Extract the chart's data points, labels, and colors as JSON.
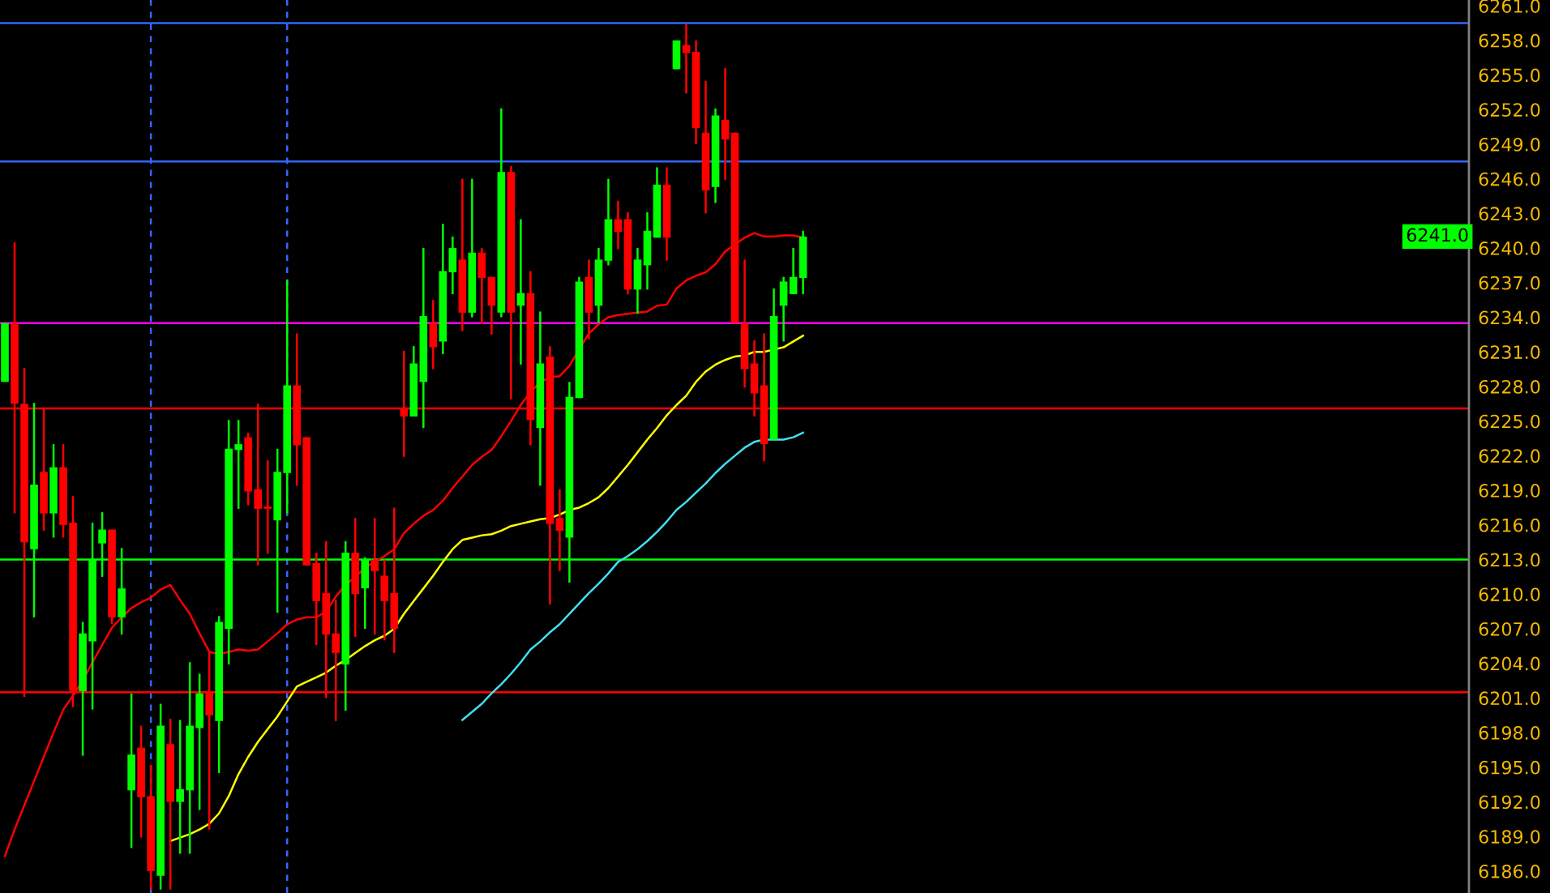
{
  "chart_data": {
    "type": "candlestick",
    "categories": [
      null,
      null,
      null,
      null,
      null,
      null,
      null,
      null,
      null,
      null,
      null,
      null,
      null,
      null,
      null,
      null,
      null,
      null,
      null,
      null,
      null,
      null,
      null,
      null,
      null,
      null,
      null,
      null,
      null,
      null,
      null,
      null,
      null,
      null,
      null,
      null,
      null,
      null,
      null,
      null,
      null,
      null,
      null,
      null,
      null,
      null,
      null,
      null,
      null,
      null,
      null,
      null,
      null,
      null,
      null,
      null,
      null,
      null,
      null,
      null,
      null,
      null,
      null,
      null,
      null,
      null,
      null,
      null,
      null,
      null,
      null,
      null,
      null,
      null,
      null,
      null,
      null,
      null,
      null,
      null,
      null,
      null,
      null
    ],
    "ohlc": [
      [
        6228.4,
        6233.5,
        6228.4,
        6233.5
      ],
      [
        6233.5,
        6240.5,
        6217.0,
        6226.5
      ],
      [
        6226.5,
        6229.6,
        6201.1,
        6214.5
      ],
      [
        6213.9,
        6226.6,
        6208.0,
        6219.5
      ],
      [
        6220.6,
        6226.1,
        6215.5,
        6217.0
      ],
      [
        6217.0,
        6223.0,
        6214.9,
        6221.0
      ],
      [
        6221.0,
        6223.0,
        6214.9,
        6216.0
      ],
      [
        6216.2,
        6218.5,
        6200.2,
        6201.6
      ],
      [
        6201.6,
        6207.6,
        6196.0,
        6206.6
      ],
      [
        6205.9,
        6216.2,
        6200.0,
        6213.0
      ],
      [
        6214.4,
        6217.1,
        6211.5,
        6215.6
      ],
      [
        6215.6,
        6215.6,
        6207.4,
        6208.0
      ],
      [
        6208.0,
        6214.0,
        6206.5,
        6210.5
      ],
      [
        6193.0,
        6201.4,
        6188.0,
        6196.1
      ],
      [
        6196.7,
        6198.6,
        6188.9,
        6192.4
      ],
      [
        6192.5,
        6195.2,
        6184.4,
        6186.0
      ],
      [
        6185.6,
        6200.5,
        6184.4,
        6198.6
      ],
      [
        6197.0,
        6199.2,
        6184.4,
        6192.0
      ],
      [
        6192.0,
        6199.1,
        6187.5,
        6193.1
      ],
      [
        6193.0,
        6204.1,
        6187.5,
        6198.6
      ],
      [
        6198.4,
        6203.1,
        6191.3,
        6201.4
      ],
      [
        6201.6,
        6205.1,
        6189.6,
        6199.5
      ],
      [
        6199.0,
        6208.1,
        6194.5,
        6207.6
      ],
      [
        6207.0,
        6225.1,
        6203.9,
        6222.6
      ],
      [
        6222.5,
        6225.1,
        6217.4,
        6223.0
      ],
      [
        6223.6,
        6224.0,
        6217.7,
        6218.9
      ],
      [
        6219.1,
        6226.5,
        6212.5,
        6217.4
      ],
      [
        6217.5,
        6221.6,
        6213.5,
        6217.5
      ],
      [
        6216.4,
        6222.6,
        6208.4,
        6220.6
      ],
      [
        6220.5,
        6237.2,
        6217.0,
        6228.1
      ],
      [
        6228.1,
        6232.6,
        6219.4,
        6222.9
      ],
      [
        6223.6,
        6223.6,
        6212.5,
        6212.5
      ],
      [
        6212.7,
        6213.6,
        6205.6,
        6209.4
      ],
      [
        6210.1,
        6214.6,
        6201.0,
        6206.5
      ],
      [
        6206.6,
        6209.5,
        6199.0,
        6204.9
      ],
      [
        6203.9,
        6214.6,
        6199.9,
        6213.6
      ],
      [
        6213.6,
        6216.6,
        6206.3,
        6210.0
      ],
      [
        6210.5,
        6213.2,
        6207.0,
        6213.0
      ],
      [
        6213.0,
        6216.6,
        6206.5,
        6212.0
      ],
      [
        6211.6,
        6213.0,
        6206.0,
        6209.4
      ],
      [
        6210.1,
        6217.5,
        6204.9,
        6207.0
      ],
      [
        6226.1,
        6231.1,
        6221.9,
        6225.4
      ],
      [
        6225.4,
        6231.5,
        6225.4,
        6230.0
      ],
      [
        6228.4,
        6240.0,
        6224.4,
        6234.1
      ],
      [
        6233.5,
        6235.5,
        6229.5,
        6231.4
      ],
      [
        6231.9,
        6242.1,
        6230.8,
        6238.0
      ],
      [
        6237.9,
        6241.0,
        6236.0,
        6240.0
      ],
      [
        6239.0,
        6246.0,
        6232.8,
        6234.4
      ],
      [
        6234.4,
        6246.0,
        6234.0,
        6239.6
      ],
      [
        6239.6,
        6240.0,
        6233.4,
        6237.4
      ],
      [
        6237.5,
        6237.5,
        6232.5,
        6235.0
      ],
      [
        6234.4,
        6252.1,
        6234.0,
        6246.6
      ],
      [
        6246.6,
        6247.1,
        6226.9,
        6234.4
      ],
      [
        6235.0,
        6242.5,
        6229.9,
        6236.1
      ],
      [
        6236.1,
        6238.0,
        6222.9,
        6225.1
      ],
      [
        6224.4,
        6234.5,
        6219.4,
        6230.0
      ],
      [
        6230.6,
        6231.5,
        6209.1,
        6216.1
      ],
      [
        6216.6,
        6219.1,
        6212.0,
        6215.5
      ],
      [
        6214.9,
        6228.4,
        6211.0,
        6227.1
      ],
      [
        6227.0,
        6237.5,
        6227.0,
        6237.1
      ],
      [
        6237.5,
        6239.0,
        6232.1,
        6234.4
      ],
      [
        6235.0,
        6240.0,
        6233.5,
        6239.0
      ],
      [
        6238.9,
        6246.0,
        6238.5,
        6242.5
      ],
      [
        6242.5,
        6244.1,
        6239.9,
        6241.4
      ],
      [
        6242.5,
        6243.1,
        6236.0,
        6236.4
      ],
      [
        6236.4,
        6240.0,
        6234.3,
        6239.0
      ],
      [
        6238.5,
        6243.1,
        6236.4,
        6241.5
      ],
      [
        6240.9,
        6247.0,
        6240.9,
        6245.5
      ],
      [
        6245.5,
        6247.0,
        6238.9,
        6240.9
      ],
      [
        6255.5,
        6258.0,
        6255.5,
        6258.0
      ],
      [
        6257.6,
        6259.4,
        6253.4,
        6256.9
      ],
      [
        6257.0,
        6258.0,
        6249.0,
        6250.4
      ],
      [
        6250.0,
        6254.5,
        6243.0,
        6245.0
      ],
      [
        6245.3,
        6252.1,
        6243.9,
        6251.5
      ],
      [
        6251.1,
        6255.6,
        6245.9,
        6249.4
      ],
      [
        6250.0,
        6250.0,
        6233.5,
        6233.5
      ],
      [
        6233.5,
        6239.0,
        6227.9,
        6229.5
      ],
      [
        6230.0,
        6232.0,
        6225.4,
        6227.4
      ],
      [
        6228.1,
        6232.6,
        6221.5,
        6223.0
      ],
      [
        6223.4,
        6236.5,
        6223.4,
        6234.1
      ],
      [
        6235.0,
        6237.5,
        6231.9,
        6237.1
      ],
      [
        6236.0,
        6240.0,
        6236.0,
        6237.5
      ],
      [
        6237.4,
        6241.5,
        6236.0,
        6241.0
      ]
    ],
    "colors": [
      "#00ff00",
      "#ff0000",
      "#ff0000",
      "#00ff00",
      "#ff0000",
      "#00ff00",
      "#ff0000",
      "#ff0000",
      "#00ff00",
      "#00ff00",
      "#00ff00",
      "#ff0000",
      "#00ff00",
      "#00ff00",
      "#ff0000",
      "#ff0000",
      "#00ff00",
      "#ff0000",
      "#00ff00",
      "#00ff00",
      "#00ff00",
      "#ff0000",
      "#00ff00",
      "#00ff00",
      "#00ff00",
      "#ff0000",
      "#ff0000",
      "#ff0000",
      "#00ff00",
      "#00ff00",
      "#ff0000",
      "#ff0000",
      "#ff0000",
      "#ff0000",
      "#ff0000",
      "#00ff00",
      "#ff0000",
      "#00ff00",
      "#ff0000",
      "#ff0000",
      "#ff0000",
      "#ff0000",
      "#00ff00",
      "#00ff00",
      "#ff0000",
      "#00ff00",
      "#00ff00",
      "#ff0000",
      "#00ff00",
      "#ff0000",
      "#ff0000",
      "#00ff00",
      "#ff0000",
      "#00ff00",
      "#ff0000",
      "#00ff00",
      "#ff0000",
      "#ff0000",
      "#00ff00",
      "#00ff00",
      "#ff0000",
      "#00ff00",
      "#00ff00",
      "#ff0000",
      "#ff0000",
      "#00ff00",
      "#00ff00",
      "#00ff00",
      "#ff0000",
      "#00ff00",
      "#ff0000",
      "#ff0000",
      "#ff0000",
      "#00ff00",
      "#ff0000",
      "#ff0000",
      "#ff0000",
      "#ff0000",
      "#ff0000",
      "#00ff00",
      "#00ff00",
      "#00ff00",
      "#00ff00"
    ],
    "series": [
      {
        "type": "line",
        "color": "#ff0000",
        "values": [
          6187.3,
          6189.6,
          6191.7,
          6193.8,
          6195.9,
          6198.0,
          6200.0,
          6201.2,
          6202.5,
          6204.1,
          6205.6,
          6207.1,
          6208.0,
          6208.8,
          6209.3,
          6209.7,
          6210.4,
          6210.8,
          6209.5,
          6208.3,
          6206.6,
          6205.0,
          6204.8,
          6205.0,
          6205.2,
          6205.1,
          6205.2,
          6205.9,
          6206.6,
          6207.4,
          6207.8,
          6208.0,
          6208.0,
          6208.5,
          6209.8,
          6210.8,
          6211.5,
          6212.3,
          6212.8,
          6213.3,
          6213.9,
          6215.3,
          6216.1,
          6216.8,
          6217.3,
          6218.1,
          6219.2,
          6220.2,
          6221.2,
          6221.9,
          6222.5,
          6223.7,
          6225.0,
          6226.4,
          6227.5,
          6228.4,
          6228.8,
          6228.9,
          6229.8,
          6231.2,
          6232.6,
          6233.4,
          6234.0,
          6234.2,
          6234.3,
          6234.4,
          6234.5,
          6235.0,
          6235.1,
          6236.5,
          6237.2,
          6237.6,
          6237.9,
          6238.6,
          6239.7,
          6240.3,
          6240.9,
          6241.3,
          6241.0,
          6241.0,
          6241.1,
          6241.1,
          6240.9
        ]
      },
      {
        "type": "line",
        "color": "#ffff00",
        "values": [
          null,
          null,
          null,
          null,
          null,
          null,
          null,
          null,
          null,
          null,
          null,
          null,
          null,
          null,
          null,
          null,
          null,
          6188.6,
          6188.9,
          6189.2,
          6189.6,
          6190.1,
          6191.0,
          6192.5,
          6194.4,
          6195.9,
          6197.2,
          6198.3,
          6199.4,
          6200.7,
          6202.0,
          6202.4,
          6202.8,
          6203.2,
          6203.8,
          6204.3,
          6204.9,
          6205.5,
          6206.0,
          6206.4,
          6207.0,
          6208.3,
          6209.4,
          6210.5,
          6211.6,
          6212.8,
          6213.9,
          6214.7,
          6214.9,
          6215.1,
          6215.2,
          6215.5,
          6215.9,
          6216.1,
          6216.3,
          6216.5,
          6216.6,
          6216.9,
          6217.3,
          6217.5,
          6217.9,
          6218.4,
          6219.2,
          6220.2,
          6221.2,
          6222.3,
          6223.4,
          6224.4,
          6225.5,
          6226.4,
          6227.2,
          6228.4,
          6229.3,
          6229.9,
          6230.3,
          6230.6,
          6230.7,
          6231.0,
          6231.0,
          6231.2,
          6231.4,
          6231.9,
          6232.4
        ]
      },
      {
        "type": "line",
        "color": "#40e0f0",
        "values": [
          null,
          null,
          null,
          null,
          null,
          null,
          null,
          null,
          null,
          null,
          null,
          null,
          null,
          null,
          null,
          null,
          null,
          null,
          null,
          null,
          null,
          null,
          null,
          null,
          null,
          null,
          null,
          null,
          null,
          null,
          null,
          null,
          null,
          null,
          null,
          null,
          null,
          null,
          null,
          null,
          null,
          null,
          null,
          null,
          null,
          null,
          null,
          6199.1,
          6199.8,
          6200.5,
          6201.4,
          6202.2,
          6203.1,
          6204.1,
          6205.2,
          6205.9,
          6206.7,
          6207.4,
          6208.3,
          6209.2,
          6210.1,
          6210.9,
          6211.8,
          6212.8,
          6213.3,
          6213.9,
          6214.6,
          6215.4,
          6216.3,
          6217.3,
          6218.0,
          6218.8,
          6219.6,
          6220.5,
          6221.3,
          6222.0,
          6222.7,
          6223.2,
          6223.4,
          6223.4,
          6223.4,
          6223.6,
          6224.0
        ]
      }
    ],
    "ref_lines": [
      {
        "axis": "y",
        "value": 6259.5,
        "color": "#3366ff"
      },
      {
        "axis": "y",
        "value": 6247.5,
        "color": "#3366ff"
      },
      {
        "axis": "y",
        "value": 6233.5,
        "color": "#ff00ff"
      },
      {
        "axis": "y",
        "value": 6226.1,
        "color": "#ff0000"
      },
      {
        "axis": "y",
        "value": 6213.0,
        "color": "#00ff00"
      },
      {
        "axis": "y",
        "value": 6201.5,
        "color": "#ff0000"
      }
    ],
    "annotations": [
      "6241.0"
    ],
    "ylim": [
      6184.1,
      6261.5
    ],
    "yticks": [
      {
        "value": 6186,
        "label": "6186.0"
      },
      {
        "value": 6189,
        "label": "6189.0"
      },
      {
        "value": 6192,
        "label": "6192.0"
      },
      {
        "value": 6195,
        "label": "6195.0"
      },
      {
        "value": 6198,
        "label": "6198.0"
      },
      {
        "value": 6201,
        "label": "6201.0"
      },
      {
        "value": 6204,
        "label": "6204.0"
      },
      {
        "value": 6207,
        "label": "6207.0"
      },
      {
        "value": 6210,
        "label": "6210.0"
      },
      {
        "value": 6213,
        "label": "6213.0"
      },
      {
        "value": 6216,
        "label": "6216.0"
      },
      {
        "value": 6219,
        "label": "6219.0"
      },
      {
        "value": 6222,
        "label": "6222.0"
      },
      {
        "value": 6225,
        "label": "6225.0"
      },
      {
        "value": 6228,
        "label": "6228.0"
      },
      {
        "value": 6231,
        "label": "6231.0"
      },
      {
        "value": 6234,
        "label": "6234.0"
      },
      {
        "value": 6237,
        "label": "6237.0"
      },
      {
        "value": 6240,
        "label": "6240.0"
      },
      {
        "value": 6243,
        "label": "6243.0"
      },
      {
        "value": 6246,
        "label": "6246.0"
      },
      {
        "value": 6249,
        "label": "6249.0"
      },
      {
        "value": 6252,
        "label": "6252.0"
      },
      {
        "value": 6255,
        "label": "6255.0"
      },
      {
        "value": 6258,
        "label": "6258.0"
      },
      {
        "value": 6261,
        "label": "6261.0"
      }
    ],
    "tick_labels": "y"
  }
}
